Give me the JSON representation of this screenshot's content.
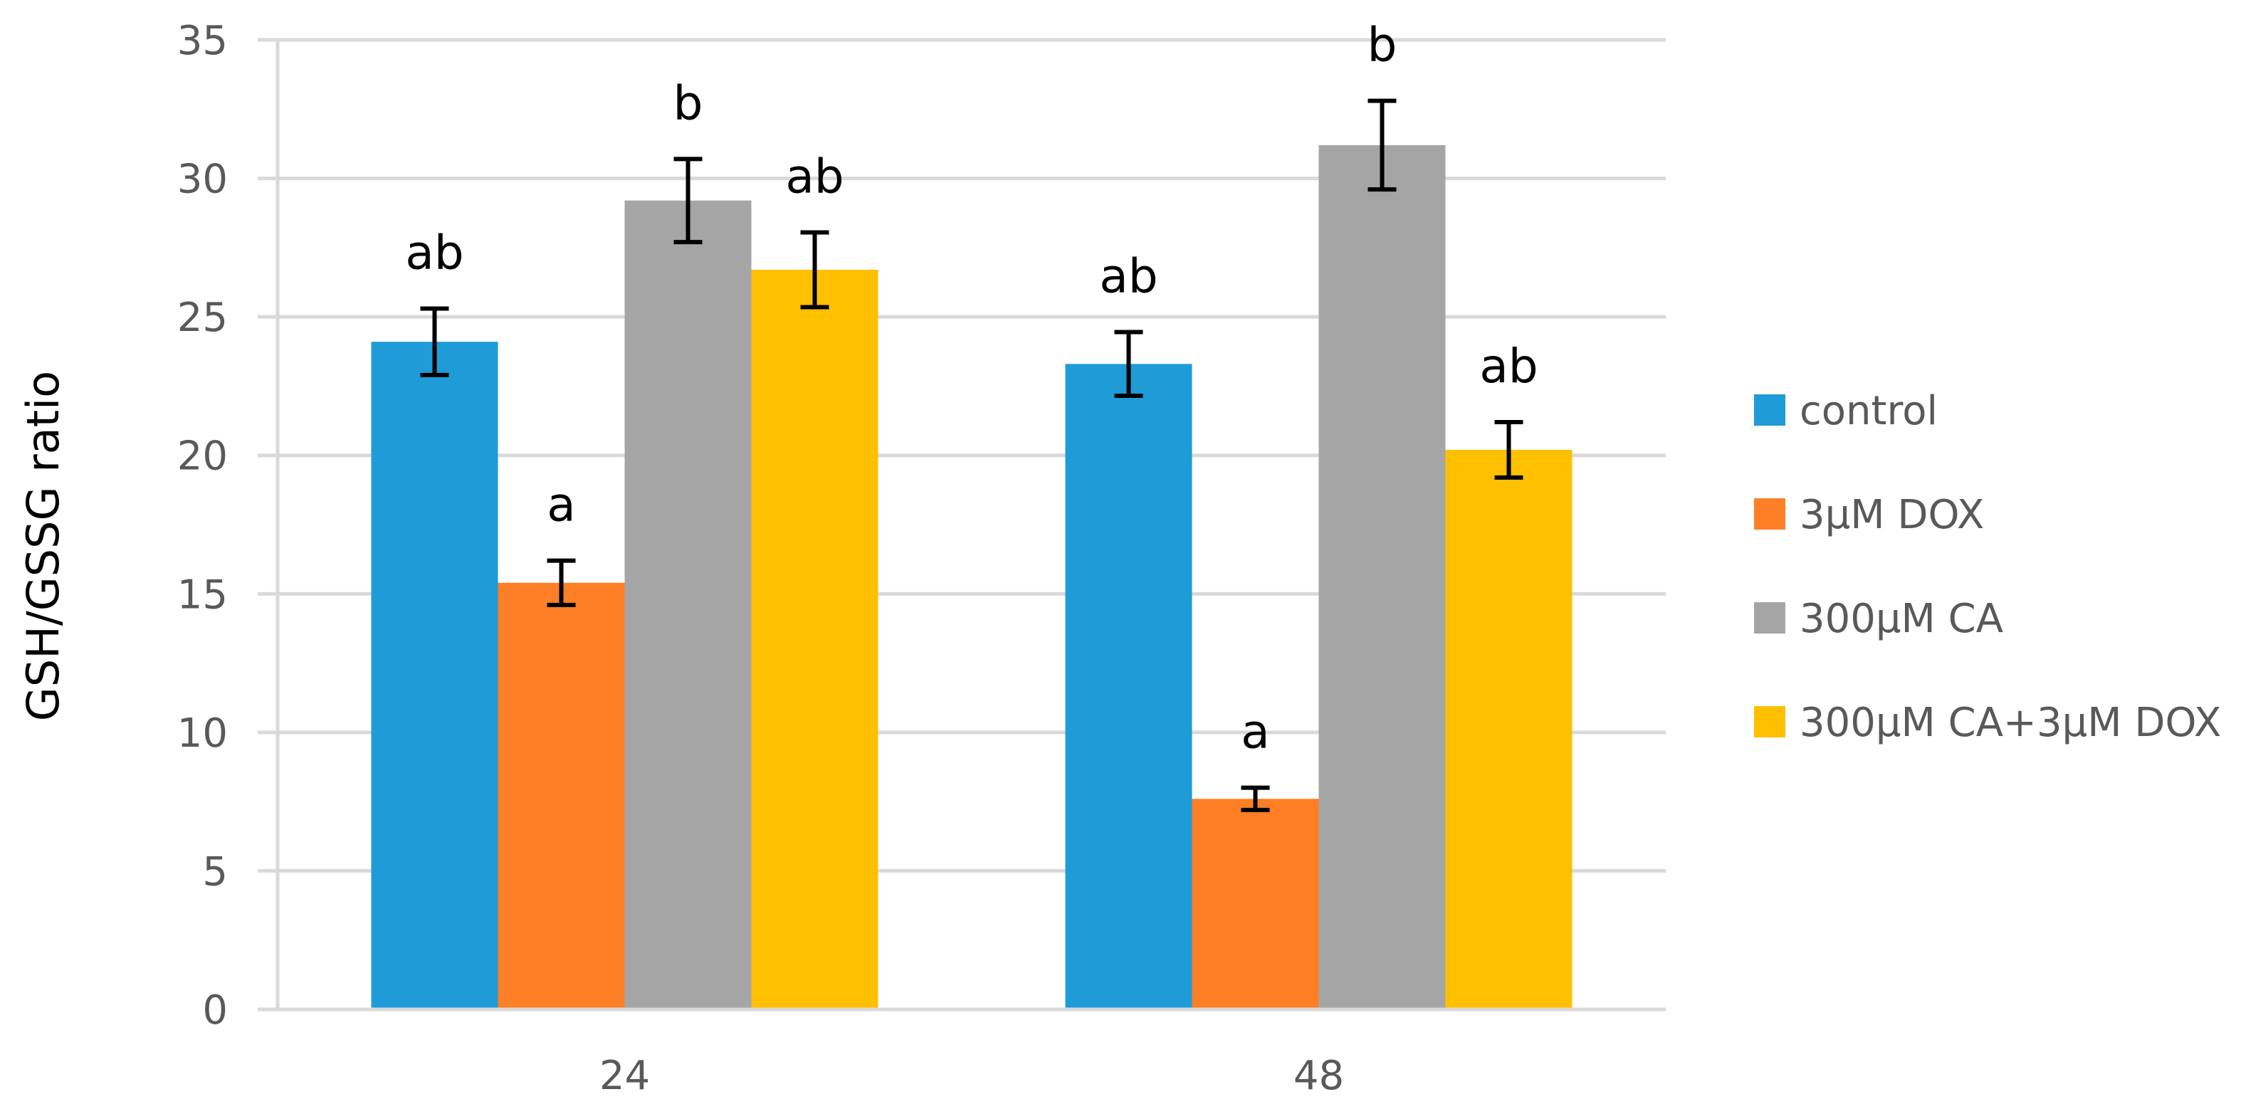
{
  "chart_data": {
    "type": "bar",
    "title": "",
    "xlabel": "",
    "ylabel": "GSH/GSSG ratio",
    "ylim": [
      0,
      35
    ],
    "yticks": [
      0,
      5,
      10,
      15,
      20,
      25,
      30,
      35
    ],
    "grid": true,
    "legend_position": "right",
    "categories": [
      "24",
      "48"
    ],
    "series": [
      {
        "name": "control",
        "color": "#1F9BD7",
        "values": [
          24.1,
          23.3
        ],
        "errors": [
          1.2,
          1.15
        ],
        "annotations": [
          "ab",
          "ab"
        ]
      },
      {
        "name": "3μM DOX",
        "color": "#FF7F27",
        "values": [
          15.4,
          7.6
        ],
        "errors": [
          0.8,
          0.4
        ],
        "annotations": [
          "a",
          "a"
        ]
      },
      {
        "name": "300μM CA",
        "color": "#A5A5A5",
        "values": [
          29.2,
          31.2
        ],
        "errors": [
          1.5,
          1.6
        ],
        "annotations": [
          "b",
          "b"
        ]
      },
      {
        "name": "300μM CA+3μM DOX",
        "color": "#FFC000",
        "values": [
          26.7,
          20.2
        ],
        "errors": [
          1.35,
          1.0
        ],
        "annotations": [
          "ab",
          "ab"
        ]
      }
    ]
  }
}
